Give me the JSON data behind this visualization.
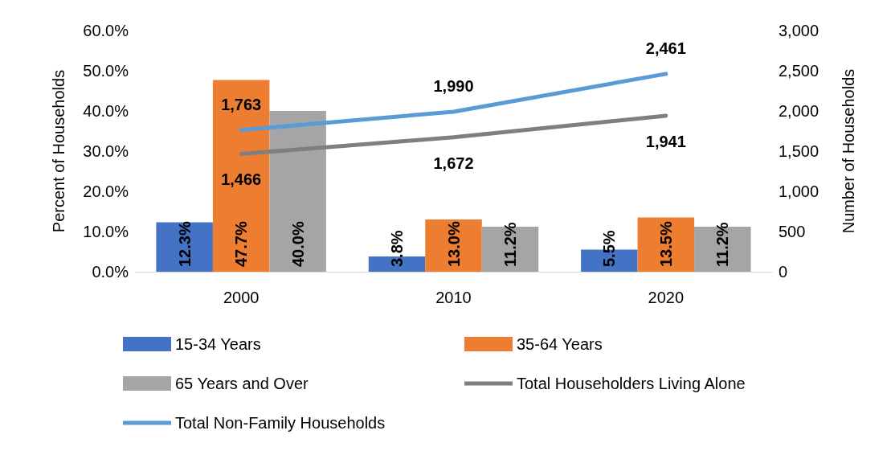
{
  "chart_data": {
    "type": "bar",
    "ylabel": "Percent of Households",
    "y2label": "Number of Households",
    "categories": [
      "2000",
      "2010",
      "2020"
    ],
    "series": [
      {
        "name": "15-34 Years",
        "color": "#4472c4",
        "values": [
          12.3,
          3.8,
          5.5
        ],
        "value_labels": [
          "12.3%",
          "3.8%",
          "5.5%"
        ]
      },
      {
        "name": "35-64 Years",
        "color": "#ed7d31",
        "values": [
          47.7,
          13.0,
          13.5
        ],
        "value_labels": [
          "47.7%",
          "13.0%",
          "13.5%"
        ]
      },
      {
        "name": "65 Years and Over",
        "color": "#a5a5a5",
        "values": [
          40.0,
          11.2,
          11.2
        ],
        "value_labels": [
          "40.0%",
          "11.2%",
          "11.2%"
        ]
      },
      {
        "name": "Total Householders Living Alone",
        "type": "line",
        "axis": "y2",
        "color": "#7f7f7f",
        "values": [
          1466,
          1672,
          1941
        ],
        "value_labels": [
          "1,466",
          "1,672",
          "1,941"
        ]
      },
      {
        "name": "Total Non-Family Households",
        "type": "line",
        "axis": "y2",
        "color": "#5b9bd5",
        "values": [
          1763,
          1990,
          2461
        ],
        "value_labels": [
          "1,763",
          "1,990",
          "2,461"
        ]
      }
    ],
    "ylim": [
      0,
      60
    ],
    "yticks": [
      {
        "value": 0,
        "label": "0.0%"
      },
      {
        "value": 10,
        "label": "10.0%"
      },
      {
        "value": 20,
        "label": "20.0%"
      },
      {
        "value": 30,
        "label": "30.0%"
      },
      {
        "value": 40,
        "label": "40.0%"
      },
      {
        "value": 50,
        "label": "50.0%"
      },
      {
        "value": 60,
        "label": "60.0%"
      }
    ],
    "y2lim": [
      0,
      3000
    ],
    "y2ticks": [
      0,
      500,
      {
        "value": 1000,
        "label": "1,000"
      },
      {
        "value": 1500,
        "label": "1,500"
      },
      {
        "value": 2000,
        "label": "2,000"
      },
      {
        "value": 2500,
        "label": "2,500"
      },
      {
        "value": 3000,
        "label": "3,000"
      }
    ],
    "grid": false,
    "legend": "bottom",
    "marker": "none",
    "line_style": "solid"
  }
}
